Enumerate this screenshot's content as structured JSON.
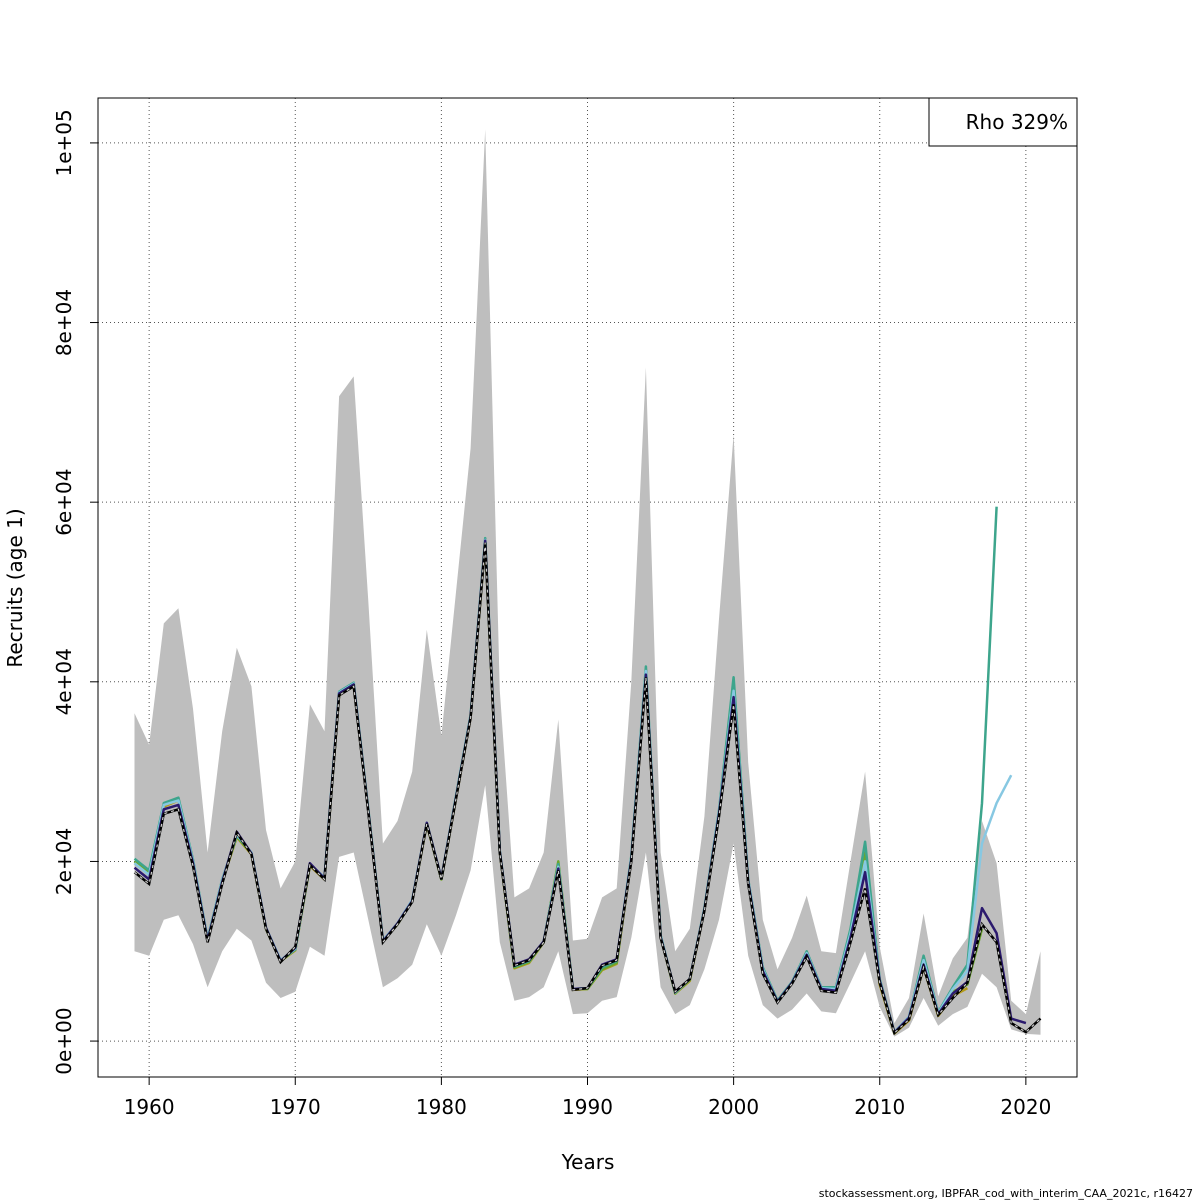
{
  "chart_data": {
    "type": "line",
    "title": "",
    "xlabel": "Years",
    "ylabel": "Recruits (age 1)",
    "xlim": [
      1956.5,
      2023.5
    ],
    "ylim": [
      -4000,
      105000
    ],
    "xticks": [
      1960,
      1970,
      1980,
      1990,
      2000,
      2010,
      2020
    ],
    "yticks": [
      0,
      20000,
      40000,
      60000,
      80000,
      100000
    ],
    "ytick_labels": [
      "0e+00",
      "2e+04",
      "4e+04",
      "6e+04",
      "8e+04",
      "1e+05"
    ],
    "grid": true,
    "legend": {
      "position": "top-right",
      "text": "Rho 329%"
    },
    "footer": "stockassessment.org, IBPFAR_cod_with_interim_CAA_2021c, r16427",
    "colors": {
      "band": "#bebebe",
      "full": "#000000",
      "peel1": "#2b1a6e",
      "peel2": "#87c8e2",
      "peel3": "#3da58c",
      "peel4": "#6aa62e",
      "peel5": "#b39a18"
    },
    "years": [
      1959,
      1960,
      1961,
      1962,
      1963,
      1964,
      1965,
      1966,
      1967,
      1968,
      1969,
      1970,
      1971,
      1972,
      1973,
      1974,
      1975,
      1976,
      1977,
      1978,
      1979,
      1980,
      1981,
      1982,
      1983,
      1984,
      1985,
      1986,
      1987,
      1988,
      1989,
      1990,
      1991,
      1992,
      1993,
      1994,
      1995,
      1996,
      1997,
      1998,
      1999,
      2000,
      2001,
      2002,
      2003,
      2004,
      2005,
      2006,
      2007,
      2008,
      2009,
      2010,
      2011,
      2012,
      2013,
      2014,
      2015,
      2016,
      2017,
      2018,
      2019,
      2020,
      2021
    ],
    "band_upper": [
      36500,
      33000,
      46500,
      48200,
      37000,
      21000,
      34500,
      43800,
      39500,
      23500,
      17000,
      20000,
      37500,
      34500,
      71800,
      74000,
      49000,
      22000,
      24500,
      30000,
      45800,
      34000,
      50000,
      66000,
      101500,
      39000,
      16000,
      17000,
      21000,
      35800,
      11200,
      11400,
      16000,
      17000,
      40000,
      75000,
      21000,
      10000,
      12500,
      25000,
      47000,
      67500,
      31000,
      13500,
      8000,
      11500,
      16200,
      10000,
      9800,
      20000,
      30000,
      10500,
      2000,
      4800,
      14200,
      5000,
      9200,
      11500,
      24500,
      19800,
      4500,
      3000,
      10000
    ],
    "band_lower": [
      10000,
      9500,
      13500,
      14000,
      10800,
      6000,
      10000,
      12500,
      11200,
      6500,
      4800,
      5500,
      10500,
      9500,
      20500,
      21000,
      13500,
      6000,
      7000,
      8500,
      13000,
      9500,
      14000,
      19000,
      28500,
      11000,
      4500,
      4900,
      6000,
      10000,
      3000,
      3100,
      4500,
      4900,
      11500,
      21000,
      6000,
      3000,
      4000,
      8000,
      13500,
      22000,
      9500,
      4000,
      2500,
      3500,
      5300,
      3300,
      3100,
      6500,
      10000,
      3800,
      500,
      1500,
      4800,
      1700,
      3000,
      3800,
      7500,
      6000,
      1300,
      800,
      700
    ],
    "series": [
      {
        "name": "",
        "color_key": "full",
        "dashed": true,
        "start": 1959,
        "values": [
          18800,
          17500,
          25300,
          25800,
          19500,
          11000,
          17500,
          23200,
          20800,
          12500,
          8800,
          10500,
          19600,
          18000,
          38500,
          39500,
          25500,
          11000,
          13000,
          15500,
          24200,
          18000,
          27000,
          36000,
          55500,
          21000,
          8400,
          9000,
          11000,
          19000,
          5700,
          5900,
          8400,
          9000,
          20000,
          40500,
          11500,
          5500,
          6900,
          14500,
          25000,
          37500,
          17500,
          7500,
          4300,
          6400,
          9400,
          5600,
          5400,
          11000,
          17000,
          6500,
          900,
          2400,
          8200,
          2900,
          4800,
          6500,
          13000,
          11000,
          2000,
          1000,
          2500
        ]
      },
      {
        "name": "",
        "color_key": "peel1",
        "dashed": false,
        "start": 1959,
        "values": [
          19300,
          18000,
          25800,
          26300,
          19800,
          11200,
          17700,
          23300,
          20900,
          12600,
          8900,
          10400,
          19800,
          18100,
          38700,
          39700,
          25600,
          11100,
          13100,
          15600,
          24300,
          18100,
          27100,
          36100,
          55700,
          21100,
          8500,
          9100,
          11100,
          19200,
          5800,
          5900,
          8500,
          9100,
          20200,
          40800,
          11600,
          5500,
          6900,
          14600,
          25300,
          38300,
          17700,
          7800,
          4400,
          6500,
          9600,
          5800,
          5600,
          11500,
          18800,
          6700,
          950,
          2600,
          8500,
          3000,
          5300,
          6600,
          14800,
          12000,
          2500,
          2000
        ]
      },
      {
        "name": "",
        "color_key": "peel2",
        "dashed": false,
        "start": 1959,
        "values": [
          19800,
          18500,
          26300,
          26800,
          20000,
          11300,
          17900,
          23000,
          21000,
          12600,
          9000,
          10300,
          19700,
          18200,
          38800,
          39800,
          25700,
          11200,
          13100,
          15700,
          24300,
          18100,
          27200,
          36200,
          55800,
          21200,
          8400,
          9000,
          11100,
          19400,
          5800,
          5900,
          8400,
          9000,
          20400,
          41200,
          11700,
          5400,
          6900,
          14700,
          25500,
          39000,
          17900,
          8000,
          4400,
          6500,
          9800,
          5900,
          5800,
          12000,
          20000,
          6700,
          1000,
          2700,
          9000,
          3100,
          5800,
          7800,
          22000,
          26500,
          29600
        ]
      },
      {
        "name": "",
        "color_key": "peel3",
        "dashed": false,
        "start": 1959,
        "values": [
          20300,
          19000,
          26500,
          27100,
          20200,
          11400,
          18000,
          22900,
          21000,
          12600,
          9000,
          10200,
          19700,
          18200,
          38900,
          39900,
          25800,
          11200,
          13100,
          15700,
          24300,
          18100,
          27300,
          36300,
          56000,
          21200,
          8300,
          8900,
          11100,
          19700,
          5800,
          5900,
          8200,
          8900,
          20600,
          41700,
          11800,
          5400,
          6900,
          14800,
          25700,
          40500,
          18000,
          8200,
          4500,
          6600,
          10000,
          6000,
          6000,
          12500,
          22200,
          6900,
          1000,
          2700,
          9500,
          3200,
          6000,
          8500,
          26500,
          59500
        ]
      },
      {
        "name": "",
        "color_key": "peel4",
        "dashed": false,
        "start": 1959,
        "values": [
          20000,
          18700,
          26300,
          27000,
          20000,
          11300,
          17900,
          22800,
          20900,
          12500,
          8900,
          10200,
          19600,
          18100,
          38700,
          39800,
          25700,
          11200,
          13000,
          15600,
          24200,
          18000,
          27100,
          36200,
          55600,
          21100,
          8200,
          8800,
          11000,
          20000,
          5800,
          5800,
          8000,
          8700,
          20400,
          41000,
          11700,
          5300,
          6800,
          14700,
          25400,
          40000,
          17900,
          8100,
          4500,
          6500,
          9700,
          5900,
          5900,
          12000,
          21000,
          6600,
          900,
          2500,
          8500,
          3000,
          5500,
          6300,
          12500
        ]
      },
      {
        "name": "",
        "color_key": "peel5",
        "dashed": false,
        "start": 1959,
        "values": [
          19800,
          18600,
          26100,
          26800,
          19900,
          11300,
          17800,
          22700,
          20800,
          12500,
          8900,
          10100,
          19500,
          18000,
          38500,
          39600,
          25600,
          11100,
          13000,
          15600,
          24100,
          18000,
          27000,
          36000,
          55400,
          21000,
          8100,
          8700,
          11000,
          19800,
          5700,
          5800,
          7900,
          8600,
          20200,
          40600,
          11600,
          5300,
          6700,
          14600,
          25200,
          39800,
          17800,
          8000,
          4400,
          6500,
          9600,
          5800,
          5700,
          11500,
          20000,
          6300,
          850,
          2300,
          8200,
          2800,
          5000,
          5900
        ]
      }
    ]
  }
}
